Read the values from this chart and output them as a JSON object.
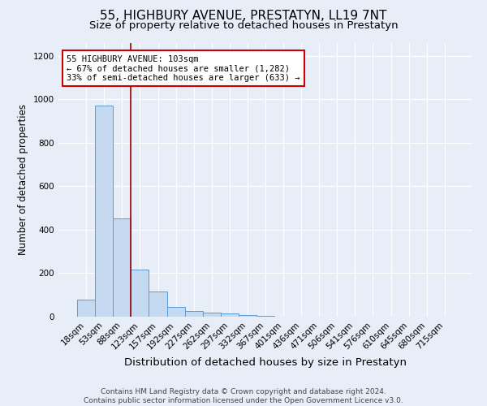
{
  "title": "55, HIGHBURY AVENUE, PRESTATYN, LL19 7NT",
  "subtitle": "Size of property relative to detached houses in Prestatyn",
  "xlabel": "Distribution of detached houses by size in Prestatyn",
  "ylabel": "Number of detached properties",
  "bin_labels": [
    "18sqm",
    "53sqm",
    "88sqm",
    "123sqm",
    "157sqm",
    "192sqm",
    "227sqm",
    "262sqm",
    "297sqm",
    "332sqm",
    "367sqm",
    "401sqm",
    "436sqm",
    "471sqm",
    "506sqm",
    "541sqm",
    "576sqm",
    "610sqm",
    "645sqm",
    "680sqm",
    "715sqm"
  ],
  "bar_heights": [
    80,
    970,
    450,
    215,
    115,
    45,
    25,
    20,
    15,
    8,
    5,
    0,
    0,
    0,
    0,
    0,
    0,
    0,
    0,
    0,
    0
  ],
  "bar_color": "#c5d9f0",
  "bar_edge_color": "#5b9bd5",
  "vline_color": "#990000",
  "annotation_text": "55 HIGHBURY AVENUE: 103sqm\n← 67% of detached houses are smaller (1,282)\n33% of semi-detached houses are larger (633) →",
  "annotation_box_color": "#ffffff",
  "annotation_box_edge_color": "#cc0000",
  "ylim": [
    0,
    1260
  ],
  "yticks": [
    0,
    200,
    400,
    600,
    800,
    1000,
    1200
  ],
  "footnote": "Contains HM Land Registry data © Crown copyright and database right 2024.\nContains public sector information licensed under the Open Government Licence v3.0.",
  "background_color": "#e8eef8",
  "plot_bg_color": "#e8eef8",
  "grid_color": "#ffffff",
  "title_fontsize": 11,
  "subtitle_fontsize": 9.5,
  "xlabel_fontsize": 9.5,
  "ylabel_fontsize": 8.5,
  "tick_fontsize": 7.5,
  "annotation_fontsize": 7.5,
  "footnote_fontsize": 6.5
}
